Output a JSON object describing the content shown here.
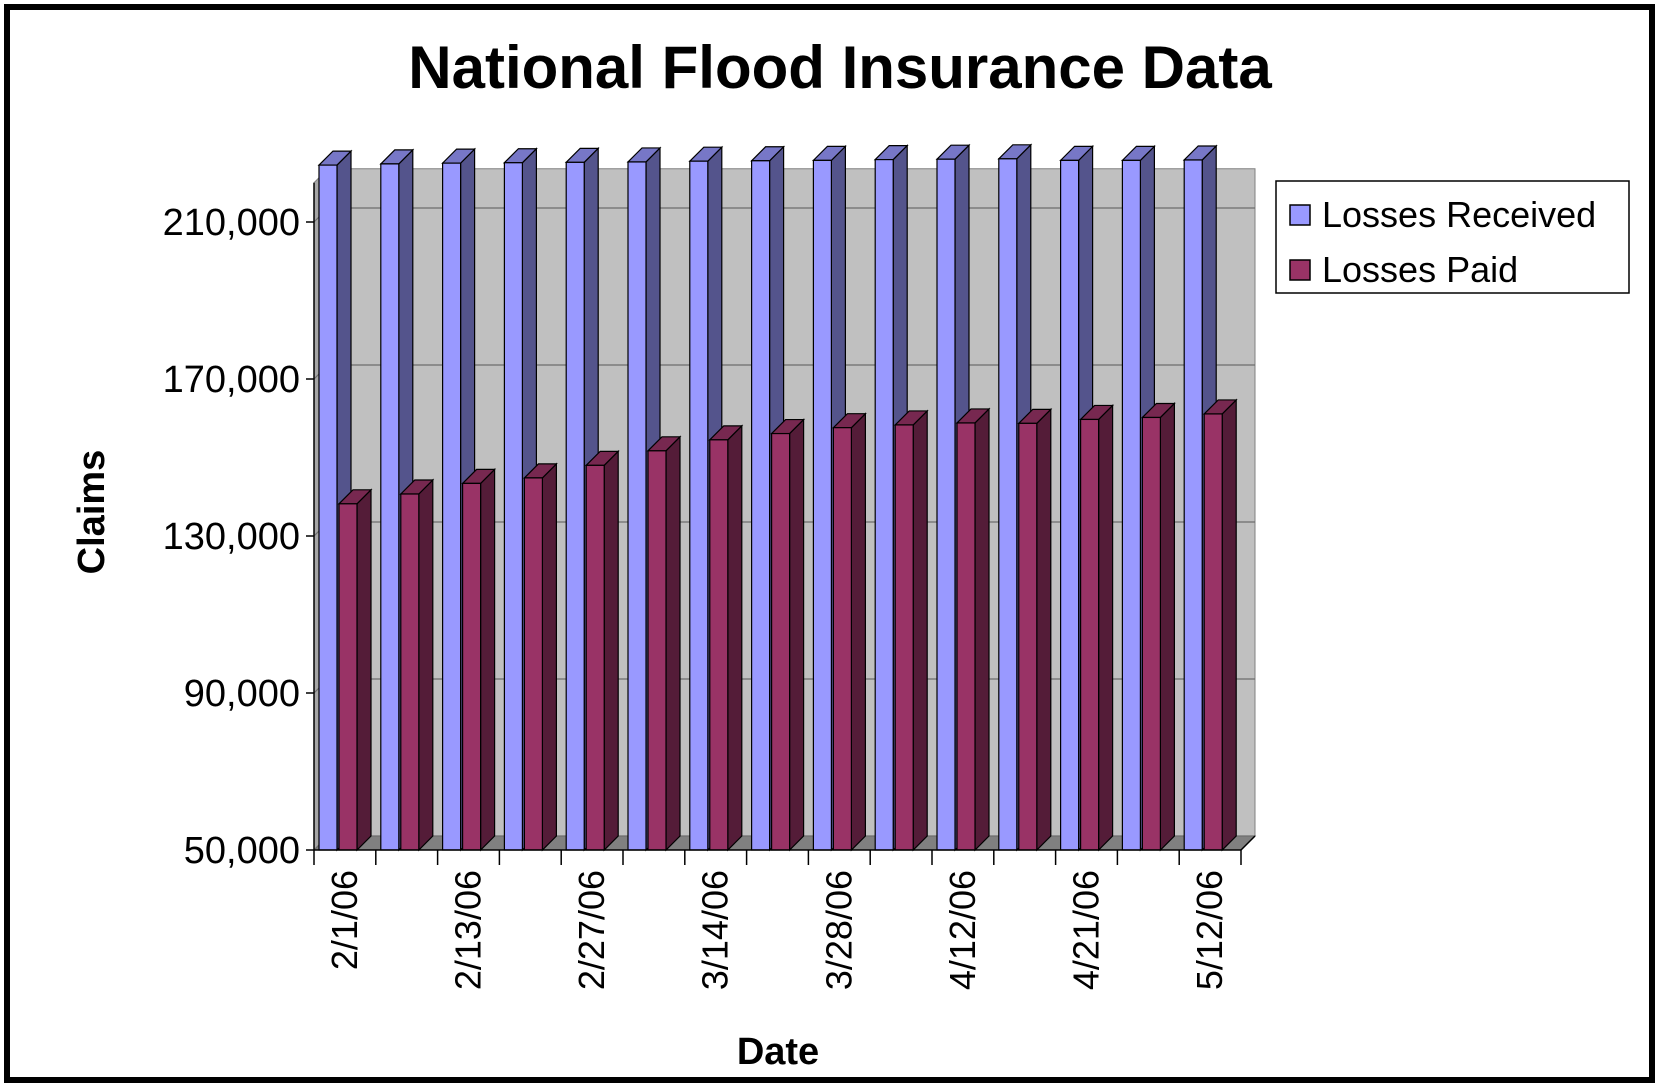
{
  "chart_data": {
    "type": "bar",
    "title": "National Flood Insurance Data",
    "xlabel": "Date",
    "ylabel": "Claims",
    "ylim": [
      50000,
      220000
    ],
    "yticks": [
      "50,000",
      "90,000",
      "130,000",
      "170,000",
      "210,000"
    ],
    "ytick_values": [
      50000,
      90000,
      130000,
      170000,
      210000
    ],
    "grid": true,
    "legend_position": "right",
    "categories": [
      "2/1/06",
      "",
      "2/13/06",
      "",
      "2/27/06",
      "",
      "3/14/06",
      "",
      "3/28/06",
      "",
      "4/12/06",
      "",
      "4/21/06",
      "",
      "5/12/06"
    ],
    "series": [
      {
        "name": "Losses Received",
        "color": "#9999ff",
        "values": [
          224500,
          224800,
          225000,
          225100,
          225200,
          225300,
          225500,
          225600,
          225700,
          225900,
          226000,
          226100,
          225700,
          225700,
          225800
        ]
      },
      {
        "name": "Losses Paid",
        "color": "#993366",
        "values": [
          138200,
          140700,
          143400,
          144800,
          148000,
          151700,
          154500,
          156100,
          157600,
          158300,
          158800,
          158700,
          159700,
          160200,
          161100
        ]
      }
    ]
  }
}
